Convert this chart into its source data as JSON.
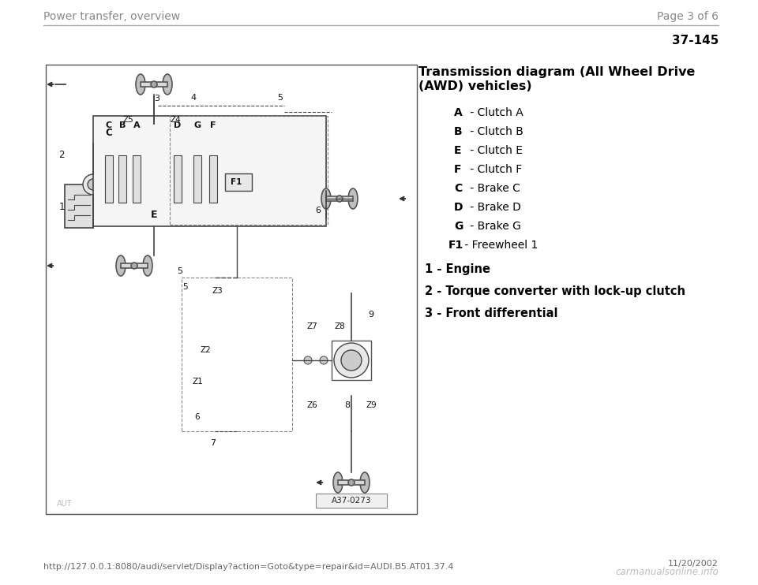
{
  "bg_color": "#ffffff",
  "header_left": "Power transfer, overview",
  "header_right": "Page 3 of 6",
  "page_number": "37-145",
  "title_line1": "Transmission diagram (All Wheel Drive",
  "title_line2": "(AWD) vehicles)",
  "legend_items": [
    {
      "label": "A",
      "desc": " - Clutch A",
      "indent": 45
    },
    {
      "label": "B",
      "desc": " - Clutch B",
      "indent": 45
    },
    {
      "label": "E",
      "desc": " - Clutch E",
      "indent": 45
    },
    {
      "label": "F",
      "desc": " - Clutch F",
      "indent": 45
    },
    {
      "label": "C",
      "desc": " - Brake C",
      "indent": 45
    },
    {
      "label": "D",
      "desc": " - Brake D",
      "indent": 45
    },
    {
      "label": "G",
      "desc": " - Brake G",
      "indent": 45
    },
    {
      "label": "F1",
      "desc": " - Freewheel 1",
      "indent": 38
    }
  ],
  "numbered_items": [
    {
      "num": "1",
      "desc": " - Engine"
    },
    {
      "num": "2",
      "desc": " - Torque converter with lock-up clutch"
    },
    {
      "num": "3",
      "desc": " - Front differential"
    }
  ],
  "footer_url": "http://127.0.0.1:8080/audi/servlet/Display?action=Goto&type=repair&id=AUDI.B5.AT01.37.4",
  "footer_date": "11/20/2002",
  "footer_watermark": "carmanualsonline.info",
  "diagram_label": "A37-0273",
  "header_color": "#888888",
  "text_color": "#000000",
  "title_fontsize": 11.5,
  "legend_fontsize": 10,
  "header_fontsize": 10,
  "footer_fontsize": 8,
  "diagram_color": "#333333"
}
